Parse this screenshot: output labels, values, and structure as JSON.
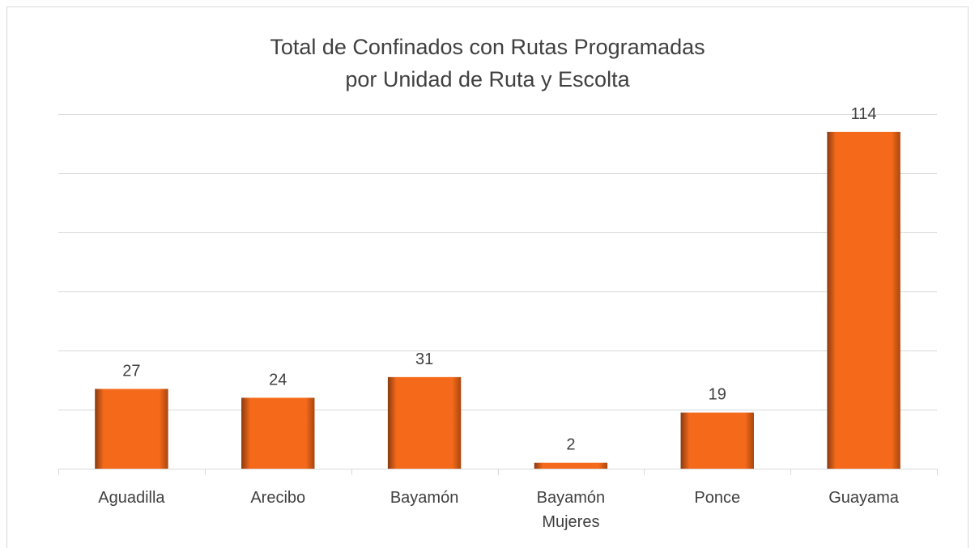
{
  "chart_data": {
    "type": "bar",
    "title": "Total de Confinados con Rutas Programadas\npor Unidad de Ruta y Escolta",
    "categories": [
      "Aguadilla",
      "Arecibo",
      "Bayamón",
      "Bayamón Mujeres",
      "Ponce",
      "Guayama"
    ],
    "values": [
      27,
      24,
      31,
      2,
      19,
      114
    ],
    "color": "#f56a1a",
    "ylim": [
      0,
      120
    ],
    "yticks": [
      0,
      20,
      40,
      60,
      80,
      100,
      120
    ],
    "grid": true
  }
}
